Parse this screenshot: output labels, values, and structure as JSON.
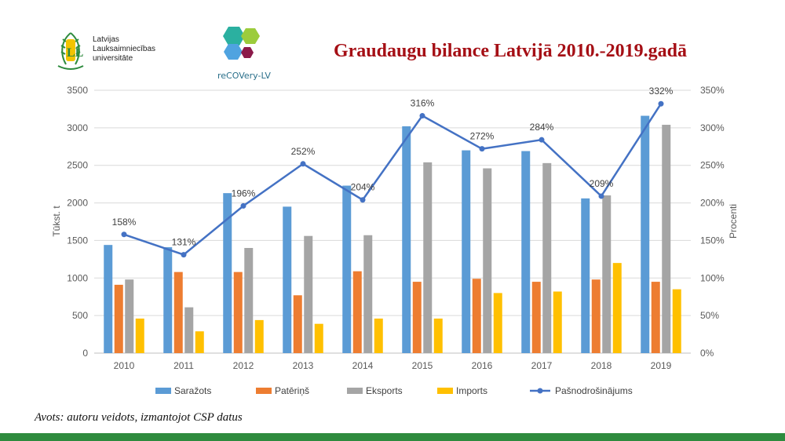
{
  "header": {
    "university_name": [
      "Latvijas",
      "Lauksaimniecības",
      "universitāte"
    ],
    "project_name": "reCOVery-LV",
    "title": "Graudaugu bilance Latvijā 2010.-2019.gadā"
  },
  "footer": {
    "source": "Avots: autoru veidots, izmantojot CSP datus"
  },
  "colors": {
    "title": "#a50f15",
    "bar_green": "#2e8b3e"
  },
  "chart_data": {
    "type": "bar",
    "categories": [
      "2010",
      "2011",
      "2012",
      "2013",
      "2014",
      "2015",
      "2016",
      "2017",
      "2018",
      "2019"
    ],
    "ylabel": "Tūkst. t",
    "y2label": "Procenti",
    "ylim": [
      0,
      3500
    ],
    "y2lim": [
      0,
      350
    ],
    "yticks": [
      "0",
      "500",
      "1000",
      "1500",
      "2000",
      "2500",
      "3000",
      "3500"
    ],
    "y2ticks": [
      "0%",
      "50%",
      "100%",
      "150%",
      "200%",
      "250%",
      "300%",
      "350%"
    ],
    "grid": true,
    "legend_position": "bottom",
    "series": [
      {
        "name": "Saražots",
        "type": "bar",
        "color": "#5b9bd5",
        "values": [
          1440,
          1410,
          2130,
          1950,
          2230,
          3020,
          2700,
          2690,
          2060,
          3160
        ]
      },
      {
        "name": "Patēriņš",
        "type": "bar",
        "color": "#ed7d31",
        "values": [
          910,
          1080,
          1080,
          770,
          1090,
          950,
          990,
          950,
          980,
          950
        ]
      },
      {
        "name": "Eksports",
        "type": "bar",
        "color": "#a5a5a5",
        "values": [
          980,
          610,
          1400,
          1560,
          1570,
          2540,
          2460,
          2530,
          2100,
          3040
        ]
      },
      {
        "name": "Imports",
        "type": "bar",
        "color": "#ffc000",
        "values": [
          460,
          290,
          440,
          390,
          460,
          460,
          800,
          820,
          1200,
          850
        ]
      },
      {
        "name": "Pašnodrošinājums",
        "type": "line",
        "axis": "right",
        "color": "#4472c4",
        "values": [
          158,
          131,
          196,
          252,
          204,
          316,
          272,
          284,
          209,
          332
        ],
        "labels": [
          "158%",
          "131%",
          "196%",
          "252%",
          "204%",
          "316%",
          "272%",
          "284%",
          "209%",
          "332%"
        ]
      }
    ]
  }
}
